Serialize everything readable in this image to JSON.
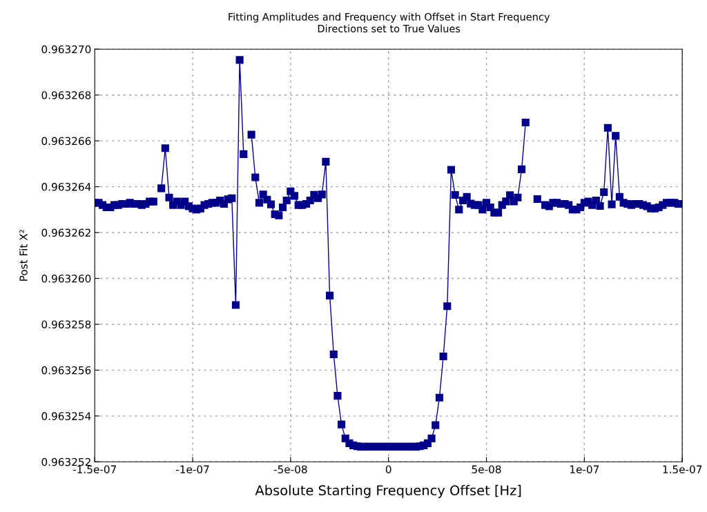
{
  "chart_data": {
    "type": "line",
    "title": "Fitting Amplitudes and Frequency with Offset in Start Frequency",
    "subtitle": "Directions set to True Values",
    "xlabel": "Absolute Starting Frequency Offset [Hz]",
    "ylabel": "Post Fit X²",
    "x": [
      -1.5e-07,
      -1.48e-07,
      -1.46e-07,
      -1.44e-07,
      -1.42e-07,
      -1.4e-07,
      -1.38e-07,
      -1.36e-07,
      -1.34e-07,
      -1.32e-07,
      -1.3e-07,
      -1.28e-07,
      -1.26e-07,
      -1.24e-07,
      -1.22e-07,
      -1.2e-07,
      -1.18e-07,
      -1.16e-07,
      -1.14e-07,
      -1.12e-07,
      -1.1e-07,
      -1.08e-07,
      -1.06e-07,
      -1.04e-07,
      -1.02e-07,
      -1e-07,
      -9.8e-08,
      -9.6e-08,
      -9.4e-08,
      -9.2e-08,
      -9e-08,
      -8.8e-08,
      -8.6e-08,
      -8.4e-08,
      -8.2e-08,
      -8e-08,
      -7.8e-08,
      -7.6e-08,
      -7.4e-08,
      -7.2e-08,
      -7e-08,
      -6.8e-08,
      -6.6e-08,
      -6.4e-08,
      -6.2e-08,
      -6e-08,
      -5.8e-08,
      -5.6e-08,
      -5.4e-08,
      -5.2e-08,
      -5e-08,
      -4.8e-08,
      -4.6e-08,
      -4.4e-08,
      -4.2e-08,
      -4e-08,
      -3.8e-08,
      -3.6e-08,
      -3.4e-08,
      -3.2e-08,
      -3e-08,
      -2.8e-08,
      -2.6e-08,
      -2.4e-08,
      -2.2e-08,
      -2e-08,
      -1.8e-08,
      -1.6e-08,
      -1.4e-08,
      -1.2e-08,
      -1e-08,
      -8e-09,
      -6e-09,
      -4e-09,
      -2e-09,
      0,
      2e-09,
      4e-09,
      6e-09,
      8e-09,
      1e-08,
      1.2e-08,
      1.4e-08,
      1.6e-08,
      1.8e-08,
      2e-08,
      2.2e-08,
      2.4e-08,
      2.6e-08,
      2.8e-08,
      3e-08,
      3.2e-08,
      3.4e-08,
      3.6e-08,
      3.8e-08,
      4e-08,
      4.2e-08,
      4.4e-08,
      4.6e-08,
      4.8e-08,
      5e-08,
      5.2e-08,
      5.4e-08,
      5.6e-08,
      5.8e-08,
      6e-08,
      6.2e-08,
      6.4e-08,
      6.6e-08,
      6.8e-08,
      7e-08,
      7.2e-08,
      7.4e-08,
      7.6e-08,
      7.8e-08,
      8e-08,
      8.2e-08,
      8.4e-08,
      8.6e-08,
      8.8e-08,
      9e-08,
      9.2e-08,
      9.4e-08,
      9.6e-08,
      9.8e-08,
      1e-07,
      1.02e-07,
      1.04e-07,
      1.06e-07,
      1.08e-07,
      1.1e-07,
      1.12e-07,
      1.14e-07,
      1.16e-07,
      1.18e-07,
      1.2e-07,
      1.22e-07,
      1.24e-07,
      1.26e-07,
      1.28e-07,
      1.3e-07,
      1.32e-07,
      1.34e-07,
      1.36e-07,
      1.38e-07,
      1.4e-07,
      1.42e-07,
      1.44e-07,
      1.46e-07,
      1.48e-07,
      1.5e-07
    ],
    "series": [
      {
        "color": "#00008b",
        "values": [
          0.9632633,
          0.9632633,
          0.9632632,
          0.9632631,
          0.9632631,
          0.9632632,
          0.9632632,
          0.96326325,
          0.96326325,
          0.9632633,
          0.96326325,
          0.96326325,
          0.9632632,
          0.96326325,
          0.96326335,
          0.96326335,
          null,
          0.96326393,
          0.96326568,
          0.96326353,
          0.9632632,
          0.96326335,
          0.9632632,
          0.96326335,
          0.96326315,
          0.96326305,
          0.963263,
          0.96326305,
          0.9632632,
          0.96326325,
          0.9632633,
          0.9632633,
          0.9632634,
          0.96326325,
          0.96326345,
          0.9632635,
          0.96325884,
          0.96326953,
          0.96326542,
          null,
          0.96326627,
          0.96326441,
          0.9632633,
          0.96326366,
          0.96326344,
          0.96326323,
          0.9632628,
          0.96326275,
          0.9632631,
          0.9632634,
          0.9632638,
          0.9632636,
          0.9632632,
          0.9632632,
          0.96326325,
          0.9632634,
          0.96326365,
          0.9632635,
          0.96326366,
          0.96326509,
          0.96325925,
          0.96325669,
          0.96325488,
          0.96325363,
          0.96325302,
          0.96325281,
          0.96325272,
          0.96325268,
          0.96325266,
          0.96325266,
          0.96325266,
          0.96325266,
          0.96325266,
          0.96325266,
          0.96325266,
          0.96325266,
          0.96325266,
          0.96325266,
          0.96325266,
          0.96325266,
          0.96325266,
          0.96325266,
          0.96325266,
          0.96325268,
          0.96325272,
          0.96325281,
          0.96325302,
          0.9632536,
          0.9632548,
          0.9632566,
          0.96325879,
          0.96326474,
          0.96326364,
          0.963263,
          0.9632634,
          0.96326356,
          0.96326326,
          0.9632632,
          0.9632632,
          0.963263,
          0.9632633,
          0.9632631,
          0.96326287,
          0.96326287,
          0.9632632,
          0.96326336,
          0.96326363,
          0.96326336,
          0.96326353,
          0.96326476,
          0.9632668,
          null,
          null,
          0.96326346,
          null,
          0.9632632,
          0.96326315,
          0.9632633,
          0.9632633,
          0.96326325,
          0.96326325,
          0.9632632,
          0.963263,
          0.963263,
          0.9632631,
          0.9632633,
          0.96326335,
          0.9632632,
          0.9632634,
          0.96326316,
          0.96326376,
          0.96326657,
          0.96326323,
          0.96326622,
          0.96326356,
          0.9632633,
          0.96326325,
          0.9632632,
          0.96326325,
          0.96326325,
          0.9632632,
          0.96326315,
          0.96326305,
          0.96326305,
          0.9632631,
          0.9632632,
          0.9632633,
          0.9632633,
          0.9632633,
          0.96326325,
          0.96326325
        ]
      }
    ],
    "xlim": [
      -1.5e-07,
      1.5e-07
    ],
    "xticks": [
      {
        "value": -1.5e-07,
        "label": "-1.5e-07"
      },
      {
        "value": -1e-07,
        "label": "-1e-07"
      },
      {
        "value": -5e-08,
        "label": "-5e-08"
      },
      0,
      {
        "value": 5e-08,
        "label": "5e-08"
      },
      {
        "value": 1e-07,
        "label": "1e-07"
      },
      {
        "value": 1.5e-07,
        "label": "1.5e-07"
      }
    ],
    "ylim": [
      0.963252,
      0.96327
    ],
    "yticks": [
      {
        "value": 0.963252,
        "label": "0.963252"
      },
      {
        "value": 0.963254,
        "label": "0.963254"
      },
      {
        "value": 0.963256,
        "label": "0.963256"
      },
      {
        "value": 0.963258,
        "label": "0.963258"
      },
      {
        "value": 0.96326,
        "label": "0.963260"
      },
      {
        "value": 0.963262,
        "label": "0.963262"
      },
      {
        "value": 0.963264,
        "label": "0.963264"
      },
      {
        "value": 0.963266,
        "label": "0.963266"
      },
      {
        "value": 0.963268,
        "label": "0.963268"
      },
      {
        "value": 0.96327,
        "label": "0.963270"
      }
    ],
    "grid": true,
    "marker": "square",
    "line_style": "solid"
  }
}
